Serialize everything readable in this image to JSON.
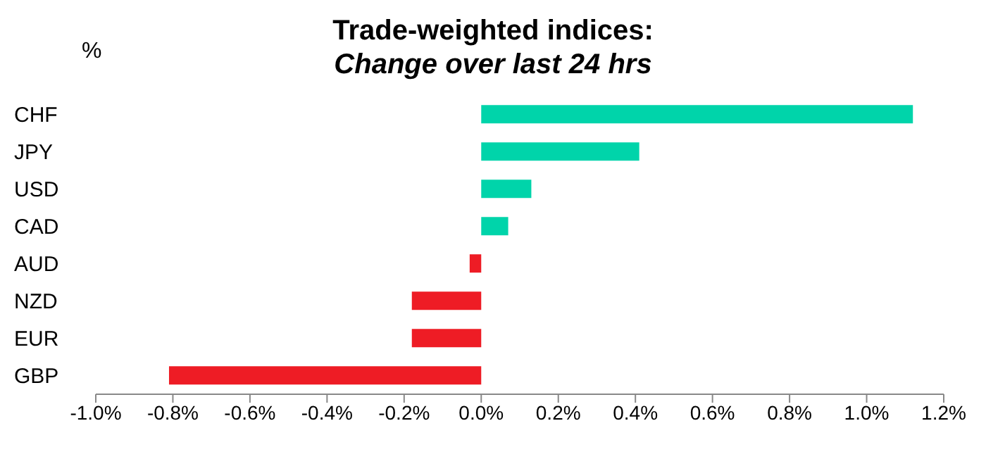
{
  "chart_data": {
    "type": "bar",
    "orientation": "horizontal",
    "title": "Trade-weighted indices:",
    "subtitle": "Change over last 24 hrs",
    "ylabel": "%",
    "categories": [
      "CHF",
      "JPY",
      "USD",
      "CAD",
      "AUD",
      "NZD",
      "EUR",
      "GBP"
    ],
    "values": [
      1.12,
      0.41,
      0.13,
      0.07,
      -0.03,
      -0.18,
      -0.18,
      -0.81
    ],
    "colors": [
      "#00d4aa",
      "#00d4aa",
      "#00d4aa",
      "#00d4aa",
      "#ee1c25",
      "#ee1c25",
      "#ee1c25",
      "#ee1c25"
    ],
    "xlim": [
      -1.0,
      1.2
    ],
    "xticks": [
      {
        "value": -1.0,
        "label": "-1.0%"
      },
      {
        "value": -0.8,
        "label": "-0.8%"
      },
      {
        "value": -0.6,
        "label": "-0.6%"
      },
      {
        "value": -0.4,
        "label": "-0.4%"
      },
      {
        "value": -0.2,
        "label": "-0.2%"
      },
      {
        "value": 0,
        "label": "0.0%"
      },
      {
        "value": 0.2,
        "label": "0.2%"
      },
      {
        "value": 0.4,
        "label": "0.4%"
      },
      {
        "value": 0.6,
        "label": "0.6%"
      },
      {
        "value": 0.8,
        "label": "0.8%"
      },
      {
        "value": 1.0,
        "label": "1.0%"
      },
      {
        "value": 1.2,
        "label": "1.2%"
      }
    ],
    "grid": false,
    "legend": false
  }
}
